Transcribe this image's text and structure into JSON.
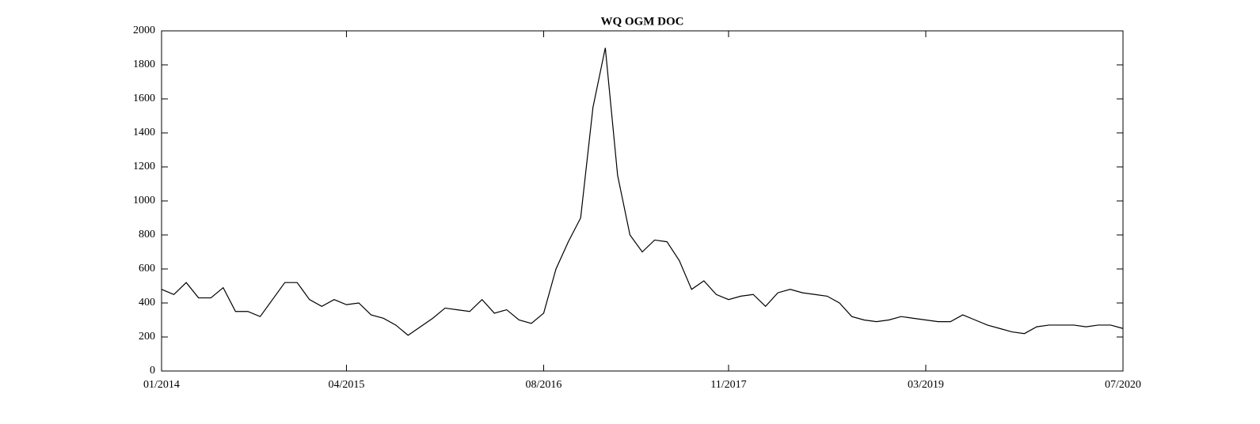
{
  "chart_data": {
    "type": "line",
    "title": "WQ OGM DOC",
    "x": [
      "2014-01",
      "2014-02",
      "2014-03",
      "2014-04",
      "2014-05",
      "2014-06",
      "2014-07",
      "2014-08",
      "2014-09",
      "2014-10",
      "2014-11",
      "2014-12",
      "2015-01",
      "2015-02",
      "2015-03",
      "2015-04",
      "2015-05",
      "2015-06",
      "2015-07",
      "2015-08",
      "2015-09",
      "2015-10",
      "2015-11",
      "2015-12",
      "2016-01",
      "2016-02",
      "2016-03",
      "2016-04",
      "2016-05",
      "2016-06",
      "2016-07",
      "2016-08",
      "2016-09",
      "2016-10",
      "2016-11",
      "2016-12",
      "2017-01",
      "2017-02",
      "2017-03",
      "2017-04",
      "2017-05",
      "2017-06",
      "2017-07",
      "2017-08",
      "2017-09",
      "2017-10",
      "2017-11",
      "2017-12",
      "2018-01",
      "2018-02",
      "2018-03",
      "2018-04",
      "2018-05",
      "2018-06",
      "2018-07",
      "2018-08",
      "2018-09",
      "2018-10",
      "2018-11",
      "2018-12",
      "2019-01",
      "2019-02",
      "2019-03",
      "2019-04",
      "2019-05",
      "2019-06",
      "2019-07",
      "2019-08",
      "2019-09",
      "2019-10",
      "2019-11",
      "2019-12",
      "2020-01",
      "2020-02",
      "2020-03",
      "2020-04",
      "2020-05",
      "2020-06",
      "2020-07"
    ],
    "series": [
      {
        "color": "#000000",
        "values": [
          480,
          450,
          520,
          430,
          430,
          490,
          350,
          350,
          320,
          420,
          520,
          520,
          420,
          380,
          420,
          390,
          400,
          330,
          310,
          270,
          210,
          260,
          310,
          370,
          360,
          350,
          420,
          340,
          360,
          300,
          280,
          340,
          600,
          760,
          900,
          1550,
          1900,
          1150,
          800,
          700,
          770,
          760,
          650,
          480,
          530,
          450,
          420,
          440,
          450,
          380,
          460,
          480,
          460,
          450,
          440,
          400,
          320,
          300,
          290,
          300,
          320,
          310,
          300,
          290,
          290,
          330,
          300,
          270,
          250,
          230,
          220,
          260,
          270,
          270,
          270,
          260,
          270,
          270,
          250
        ]
      }
    ],
    "xlim": [
      "2014-01",
      "2020-07"
    ],
    "xticks": [
      {
        "value": "2014-01",
        "label": "01/2014"
      },
      {
        "value": "2015-04",
        "label": "04/2015"
      },
      {
        "value": "2016-08",
        "label": "08/2016"
      },
      {
        "value": "2017-11",
        "label": "11/2017"
      },
      {
        "value": "2019-03",
        "label": "03/2019"
      },
      {
        "value": "2020-07",
        "label": "07/2020"
      }
    ],
    "ylim": [
      0,
      2000
    ],
    "yticks": [
      0,
      200,
      400,
      600,
      800,
      1000,
      1200,
      1400,
      1600,
      1800,
      2000
    ]
  }
}
